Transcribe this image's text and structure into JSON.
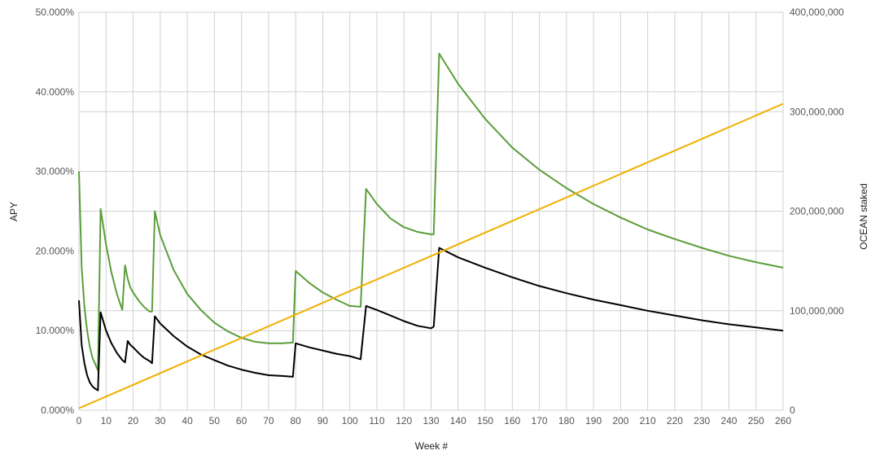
{
  "chart_data": {
    "type": "line",
    "title": "",
    "xlabel": "Week #",
    "ylabel_left": "APY",
    "ylabel_right": "OCEAN staked",
    "xlim": [
      0,
      260
    ],
    "x_ticks": [
      0,
      10,
      20,
      30,
      40,
      50,
      60,
      70,
      80,
      90,
      100,
      110,
      120,
      130,
      140,
      150,
      160,
      170,
      180,
      190,
      200,
      210,
      220,
      230,
      240,
      250,
      260
    ],
    "ylim_left": [
      0,
      50
    ],
    "ylim_right": [
      0,
      400000000
    ],
    "y_ticks_left": [
      "0.000%",
      "10.000%",
      "20.000%",
      "30.000%",
      "40.000%",
      "50.000%"
    ],
    "y_ticks_right": [
      "0",
      "100,000,000",
      "200,000,000",
      "300,000,000",
      "400,000,000"
    ],
    "grid": true,
    "series": [
      {
        "axis": "left",
        "color": "#5a9e3a",
        "x": [
          0,
          1,
          2,
          3,
          4,
          5,
          6,
          7,
          8,
          10,
          12,
          14,
          16,
          17,
          18,
          19,
          20,
          22,
          24,
          26,
          27,
          28,
          30,
          35,
          40,
          45,
          50,
          55,
          60,
          65,
          70,
          75,
          79,
          80,
          85,
          90,
          95,
          100,
          104,
          106,
          110,
          115,
          120,
          125,
          130,
          131,
          133,
          140,
          150,
          160,
          170,
          180,
          190,
          200,
          210,
          220,
          230,
          240,
          250,
          260
        ],
        "values": [
          30.0,
          18.0,
          13.0,
          10.0,
          8.0,
          6.6,
          5.8,
          5.0,
          25.3,
          20.8,
          17.3,
          14.6,
          12.6,
          18.2,
          16.5,
          15.4,
          14.8,
          13.8,
          13.0,
          12.4,
          12.4,
          25.0,
          22.0,
          17.6,
          14.6,
          12.6,
          11.0,
          9.9,
          9.1,
          8.6,
          8.4,
          8.4,
          8.5,
          17.5,
          16.0,
          14.8,
          13.9,
          13.1,
          13.0,
          27.8,
          25.9,
          24.1,
          23.0,
          22.4,
          22.1,
          22.1,
          44.8,
          41.0,
          36.6,
          33.0,
          30.2,
          27.9,
          25.9,
          24.2,
          22.7,
          21.5,
          20.4,
          19.4,
          18.6,
          17.9
        ]
      },
      {
        "axis": "left",
        "color": "#000000",
        "x": [
          0,
          1,
          2,
          3,
          4,
          5,
          6,
          7,
          8,
          10,
          12,
          14,
          16,
          17,
          18,
          19,
          20,
          22,
          24,
          26,
          27,
          28,
          30,
          35,
          40,
          45,
          50,
          55,
          60,
          65,
          70,
          75,
          79,
          80,
          85,
          90,
          95,
          100,
          104,
          106,
          110,
          115,
          120,
          125,
          130,
          131,
          133,
          140,
          150,
          160,
          170,
          180,
          190,
          200,
          210,
          220,
          230,
          240,
          250,
          260
        ],
        "values": [
          13.8,
          8.2,
          5.9,
          4.4,
          3.5,
          3.0,
          2.7,
          2.5,
          12.3,
          10.0,
          8.4,
          7.2,
          6.3,
          6.0,
          8.7,
          8.2,
          7.9,
          7.2,
          6.6,
          6.2,
          5.9,
          11.8,
          10.9,
          9.3,
          8.0,
          7.0,
          6.3,
          5.6,
          5.1,
          4.7,
          4.4,
          4.3,
          4.2,
          8.4,
          7.9,
          7.5,
          7.1,
          6.8,
          6.4,
          13.1,
          12.6,
          11.9,
          11.2,
          10.6,
          10.3,
          10.5,
          20.4,
          19.2,
          17.9,
          16.7,
          15.6,
          14.7,
          13.9,
          13.2,
          12.5,
          11.9,
          11.3,
          10.8,
          10.4,
          10.0
        ]
      },
      {
        "axis": "right",
        "color": "#f0b000",
        "x": [
          0,
          260
        ],
        "values": [
          2000000,
          308000000
        ]
      }
    ]
  }
}
